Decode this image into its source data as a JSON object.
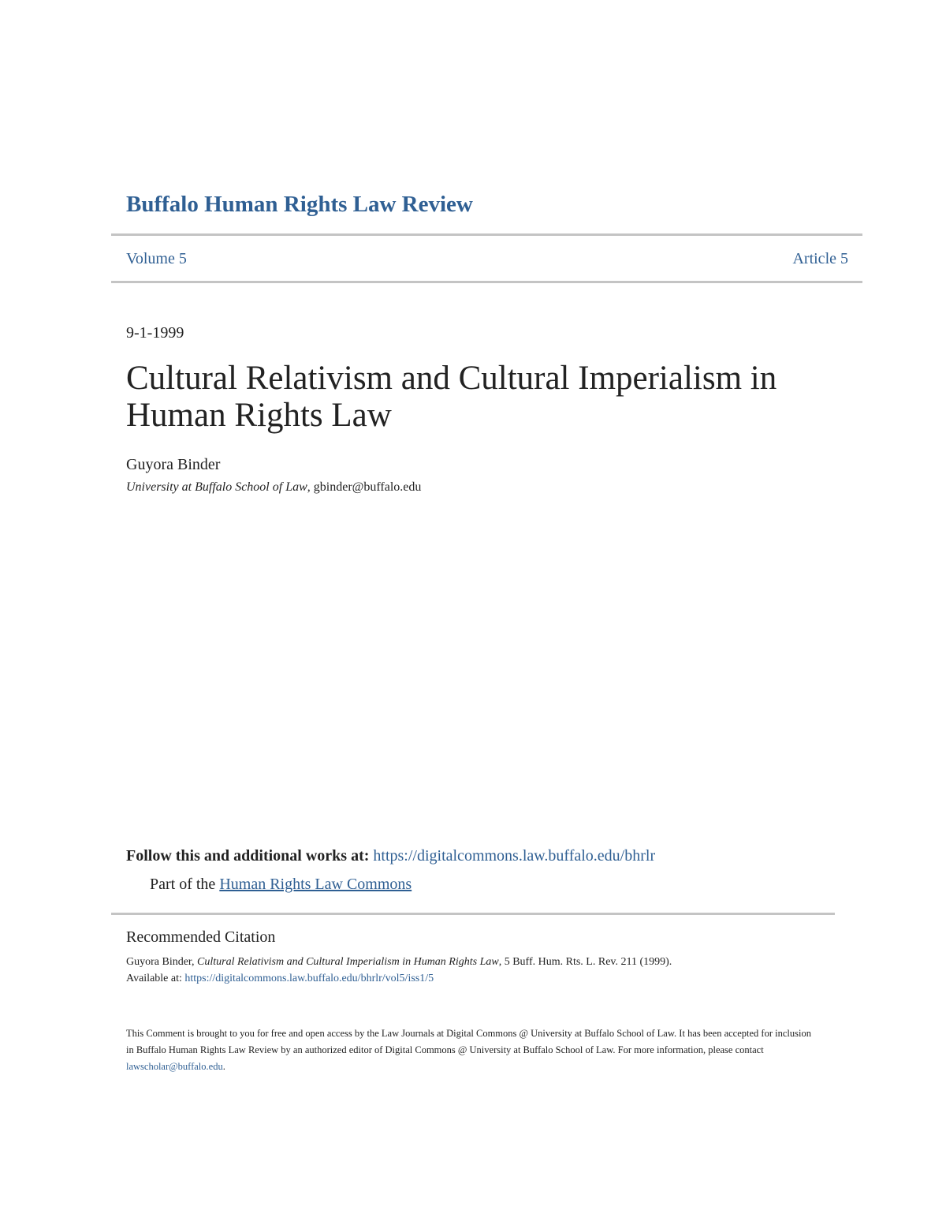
{
  "journal": {
    "name": "Buffalo Human Rights Law Review",
    "volume": "Volume 5",
    "article": "Article 5"
  },
  "article": {
    "date": "9-1-1999",
    "title": "Cultural Relativism and Cultural Imperialism in Human Rights Law",
    "author": "Guyora Binder",
    "affiliation": "University at Buffalo School of Law",
    "email": "gbinder@buffalo.edu"
  },
  "follow": {
    "label": "Follow this and additional works at:",
    "url": "https://digitalcommons.law.buffalo.edu/bhrlr",
    "part_of_label": "Part of the",
    "part_of_link": "Human Rights Law Commons"
  },
  "citation": {
    "heading": "Recommended Citation",
    "author": "Guyora Binder,",
    "title": "Cultural Relativism and Cultural Imperialism in Human Rights Law",
    "rest": ", 5 Buff. Hum. Rts. L. Rev. 211 (1999).",
    "available_label": "Available at:",
    "available_url": "https://digitalcommons.law.buffalo.edu/bhrlr/vol5/iss1/5"
  },
  "notice": {
    "text": "This Comment is brought to you for free and open access by the Law Journals at Digital Commons @ University at Buffalo School of Law. It has been accepted for inclusion in Buffalo Human Rights Law Review by an authorized editor of Digital Commons @ University at Buffalo School of Law. For more information, please contact",
    "contact": "lawscholar@buffalo.edu",
    "end": "."
  },
  "colors": {
    "link": "#2f5f93",
    "rule": "#c4c4c4"
  }
}
